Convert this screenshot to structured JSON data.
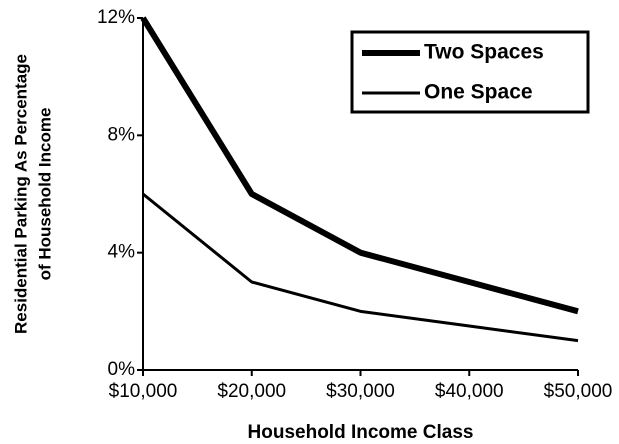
{
  "chart_data": {
    "type": "line",
    "xlabel": "Household Income Class",
    "ylabel": [
      "Residential Parking As Percentage",
      "of Household Income"
    ],
    "x": [
      10000,
      20000,
      30000,
      40000,
      50000
    ],
    "series": [
      {
        "name": "Two Spaces",
        "color": "#000000",
        "line_width": 6,
        "values": [
          12,
          6,
          4,
          3,
          2
        ]
      },
      {
        "name": "One Space",
        "color": "#000000",
        "line_width": 3,
        "values": [
          6,
          3,
          2,
          1.5,
          1
        ]
      }
    ],
    "xlim": [
      10000,
      50000
    ],
    "xticks": [
      {
        "value": 10000,
        "label": "$10,000"
      },
      {
        "value": 20000,
        "label": "$20,000"
      },
      {
        "value": 30000,
        "label": "$30,000"
      },
      {
        "value": 40000,
        "label": "$40,000"
      },
      {
        "value": 50000,
        "label": "$50,000"
      }
    ],
    "ylim": [
      0,
      12
    ],
    "yticks": [
      {
        "value": 0,
        "label": "0%"
      },
      {
        "value": 4,
        "label": "4%"
      },
      {
        "value": 8,
        "label": "8%"
      },
      {
        "value": 12,
        "label": "12%"
      }
    ],
    "grid": false,
    "legend": "upper right"
  }
}
